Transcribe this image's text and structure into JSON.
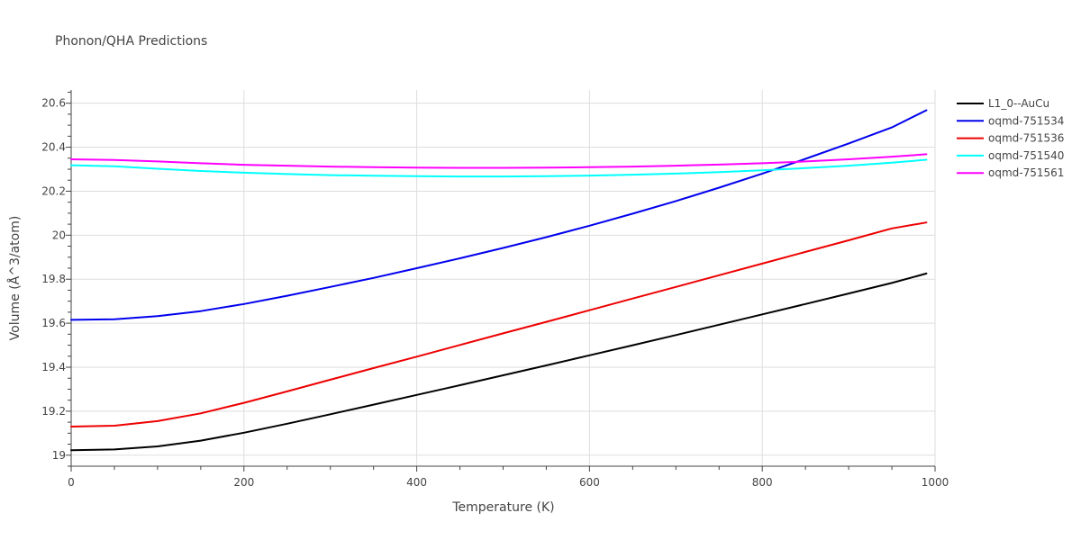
{
  "chart_data": {
    "type": "line",
    "title": "Phonon/QHA Predictions",
    "xlabel": "Temperature (K)",
    "ylabel": "Volume (Å^3/atom)",
    "xlim": [
      0,
      1000
    ],
    "ylim": [
      18.95,
      20.66
    ],
    "xticks": [
      0,
      200,
      400,
      600,
      800,
      1000
    ],
    "xtick_labels": [
      "0",
      "200",
      "400",
      "600",
      "800",
      "1000"
    ],
    "yticks": [
      19,
      19.2,
      19.4,
      19.6,
      19.8,
      20,
      20.2,
      20.4,
      20.6
    ],
    "ytick_labels": [
      "19",
      "19.2",
      "19.4",
      "19.6",
      "19.8",
      "20",
      "20.2",
      "20.4",
      "20.6"
    ],
    "grid": true,
    "legend_position": "top-right",
    "series": [
      {
        "name": "L1_0--AuCu",
        "color": "#000000",
        "x": [
          0,
          50,
          100,
          150,
          200,
          250,
          300,
          350,
          400,
          450,
          500,
          550,
          600,
          650,
          700,
          750,
          800,
          850,
          900,
          950,
          990
        ],
        "y": [
          19.023,
          19.026,
          19.04,
          19.066,
          19.102,
          19.143,
          19.186,
          19.23,
          19.274,
          19.318,
          19.363,
          19.408,
          19.454,
          19.5,
          19.546,
          19.593,
          19.64,
          19.687,
          19.735,
          19.783,
          19.826
        ]
      },
      {
        "name": "oqmd-751534",
        "color": "#0000ee",
        "x": [
          0,
          50,
          100,
          150,
          200,
          250,
          300,
          350,
          400,
          450,
          500,
          550,
          600,
          650,
          700,
          750,
          800,
          850,
          900,
          950,
          990
        ],
        "y": [
          19.615,
          19.618,
          19.632,
          19.655,
          19.687,
          19.725,
          19.765,
          19.806,
          19.85,
          19.895,
          19.942,
          19.991,
          20.043,
          20.098,
          20.155,
          20.216,
          20.28,
          20.347,
          20.417,
          20.49,
          20.568
        ]
      },
      {
        "name": "oqmd-751536",
        "color": "#ee0000",
        "x": [
          0,
          50,
          100,
          150,
          200,
          250,
          300,
          350,
          400,
          450,
          500,
          550,
          600,
          650,
          700,
          750,
          800,
          850,
          900,
          950,
          990
        ],
        "y": [
          19.13,
          19.134,
          19.155,
          19.19,
          19.238,
          19.29,
          19.343,
          19.396,
          19.448,
          19.501,
          19.554,
          19.606,
          19.659,
          19.712,
          19.765,
          19.818,
          19.871,
          19.924,
          19.977,
          20.031,
          20.058
        ]
      },
      {
        "name": "oqmd-751540",
        "color": "#00ffff",
        "x": [
          0,
          50,
          100,
          150,
          200,
          250,
          300,
          350,
          400,
          450,
          500,
          550,
          600,
          650,
          700,
          750,
          800,
          850,
          900,
          950,
          990
        ],
        "y": [
          20.318,
          20.313,
          20.302,
          20.292,
          20.284,
          20.278,
          20.273,
          20.27,
          20.268,
          20.267,
          20.267,
          20.268,
          20.271,
          20.275,
          20.28,
          20.287,
          20.295,
          20.305,
          20.316,
          20.33,
          20.343
        ]
      },
      {
        "name": "oqmd-751561",
        "color": "#ff00ff",
        "x": [
          0,
          50,
          100,
          150,
          200,
          250,
          300,
          350,
          400,
          450,
          500,
          550,
          600,
          650,
          700,
          750,
          800,
          850,
          900,
          950,
          990
        ],
        "y": [
          20.345,
          20.342,
          20.335,
          20.327,
          20.32,
          20.316,
          20.312,
          20.309,
          20.307,
          20.306,
          20.306,
          20.307,
          20.309,
          20.312,
          20.316,
          20.321,
          20.327,
          20.335,
          20.345,
          20.357,
          20.368
        ]
      }
    ]
  }
}
